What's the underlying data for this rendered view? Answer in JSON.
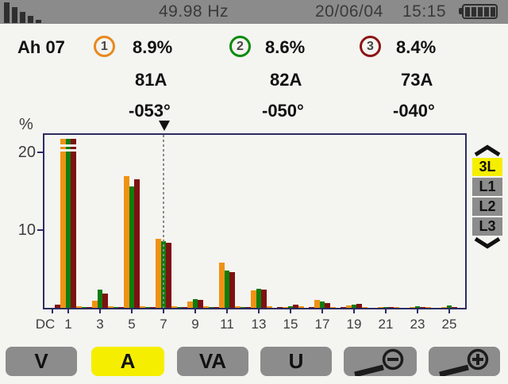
{
  "status_bar": {
    "frequency": "49.98 Hz",
    "date": "20/06/04",
    "time": "15:15",
    "left_icon": "harmonics-icon",
    "right_icon": "battery-icon"
  },
  "header": {
    "mode": "Ah 07",
    "phases": [
      {
        "n": "1",
        "percent": "8.9%",
        "current": "81A",
        "angle": "-053°",
        "color": "#e8891b"
      },
      {
        "n": "2",
        "percent": "8.6%",
        "current": "82A",
        "angle": "-050°",
        "color": "#0b8a0b"
      },
      {
        "n": "3",
        "percent": "8.4%",
        "current": "73A",
        "angle": "-040°",
        "color": "#8b1414"
      }
    ]
  },
  "chart_data": {
    "type": "bar",
    "ylabel": "%",
    "yticks": [
      20,
      10
    ],
    "ylim": [
      0,
      22.2
    ],
    "categories": [
      "DC",
      "1",
      "2",
      "3",
      "4",
      "5",
      "6",
      "7",
      "8",
      "9",
      "10",
      "11",
      "12",
      "13",
      "14",
      "15",
      "16",
      "17",
      "18",
      "19",
      "20",
      "21",
      "22",
      "23",
      "24",
      "25"
    ],
    "series": [
      {
        "name": "Phase 1",
        "color": "#ef9212",
        "values": [
          0,
          21.7,
          0.2,
          0.9,
          0.2,
          16.9,
          0.2,
          8.9,
          0.2,
          0.8,
          0.2,
          5.8,
          0.2,
          2.2,
          0.2,
          0.15,
          0.2,
          1.05,
          0.15,
          0.35,
          0.15,
          0.15,
          0.1,
          0.1,
          0.1,
          0.1
        ]
      },
      {
        "name": "Phase 2",
        "color": "#0e7d0e",
        "values": [
          0,
          21.7,
          0.1,
          2.3,
          0.1,
          15.6,
          0.1,
          8.6,
          0.1,
          1.1,
          0.1,
          4.8,
          0.1,
          2.4,
          0,
          0.2,
          0,
          0.85,
          0,
          0.45,
          0,
          0.1,
          0,
          0.25,
          0,
          0.3
        ]
      },
      {
        "name": "Phase 3",
        "color": "#7e1111",
        "values": [
          0.4,
          21.7,
          0.1,
          1.8,
          0.1,
          16.5,
          0.1,
          8.4,
          0.1,
          1.0,
          0.1,
          4.6,
          0.1,
          2.3,
          0.1,
          0.45,
          0.1,
          0.6,
          0.1,
          0.55,
          0,
          0.1,
          0,
          0.1,
          0,
          0.15
        ]
      }
    ],
    "xtick_labels": [
      "DC",
      "1",
      "3",
      "5",
      "7",
      "9",
      "11",
      "13",
      "15",
      "17",
      "19",
      "21",
      "23",
      "25"
    ],
    "xtick_positions": [
      0,
      1,
      3,
      5,
      7,
      9,
      11,
      13,
      15,
      17,
      19,
      21,
      23,
      25
    ],
    "cursor_harmonic": 7,
    "clipped_harmonic": 1
  },
  "phase_selector": {
    "options": [
      "3L",
      "L1",
      "L2",
      "L3"
    ],
    "active": "3L"
  },
  "bottom_buttons": [
    {
      "label": "V",
      "active": false
    },
    {
      "label": "A",
      "active": true
    },
    {
      "label": "VA",
      "active": false
    },
    {
      "label": "U",
      "active": false
    },
    {
      "label": "",
      "icon": "zoom-out-icon",
      "active": false
    },
    {
      "label": "",
      "icon": "zoom-in-icon",
      "active": false
    }
  ],
  "colors": {
    "statusbar_bg": "#8b8b8b",
    "highlight_yellow": "#f6ee00",
    "button_gray": "#8c8c8c",
    "plot_border": "#2c2c62",
    "background": "#f4f4f1"
  }
}
